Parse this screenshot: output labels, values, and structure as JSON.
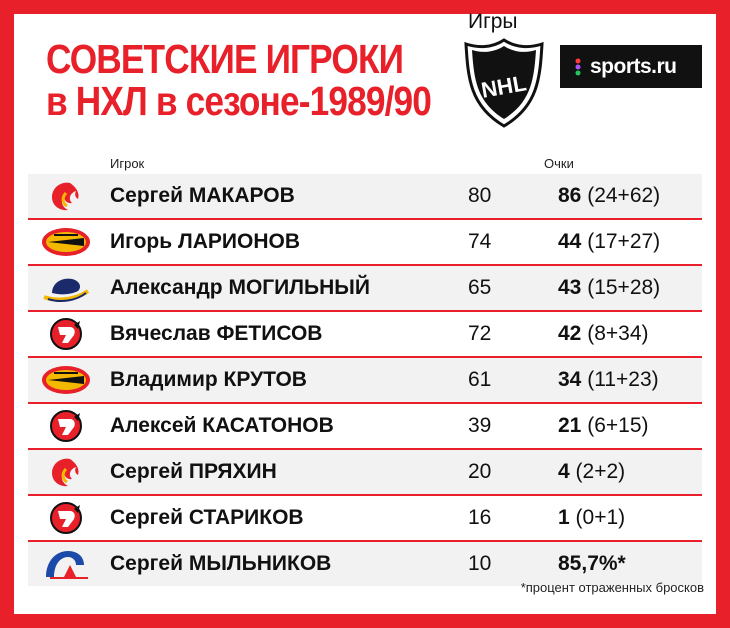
{
  "title": {
    "line1": "СОВЕТСКИЕ ИГРОКИ",
    "line2": "в НХЛ в сезоне-1989/90"
  },
  "brand": {
    "label": "sports.ru"
  },
  "nhl_logo": {
    "text": "NHL"
  },
  "headers": {
    "player": "Игрок",
    "games": "Игры",
    "points": "Очки"
  },
  "players": [
    {
      "first": "Сергей",
      "last": "МАКАРОВ",
      "team_icon": "calgary-flames-icon",
      "games": "80",
      "points": "86",
      "detail": "(24+62)"
    },
    {
      "first": "Игорь",
      "last": "ЛАРИОНОВ",
      "team_icon": "vancouver-canucks-icon",
      "games": "74",
      "points": "44",
      "detail": "(17+27)"
    },
    {
      "first": "Александр",
      "last": "МОГИЛЬНЫЙ",
      "team_icon": "buffalo-sabres-icon",
      "games": "65",
      "points": "43",
      "detail": "(15+28)"
    },
    {
      "first": "Вячеслав",
      "last": "ФЕТИСОВ",
      "team_icon": "new-jersey-devils-icon",
      "games": "72",
      "points": "42",
      "detail": "(8+34)"
    },
    {
      "first": "Владимир",
      "last": "КРУТОВ",
      "team_icon": "vancouver-canucks-icon",
      "games": "61",
      "points": "34",
      "detail": "(11+23)"
    },
    {
      "first": "Алексей",
      "last": "КАСАТОНОВ",
      "team_icon": "new-jersey-devils-icon",
      "games": "39",
      "points": "21",
      "detail": "(6+15)"
    },
    {
      "first": "Сергей",
      "last": "ПРЯХИН",
      "team_icon": "calgary-flames-icon",
      "games": "20",
      "points": "4",
      "detail": "(2+2)"
    },
    {
      "first": "Сергей",
      "last": "СТАРИКОВ",
      "team_icon": "new-jersey-devils-icon",
      "games": "16",
      "points": "1",
      "detail": "(0+1)"
    },
    {
      "first": "Сергей",
      "last": "МЫЛЬНИКОВ",
      "team_icon": "quebec-nordiques-icon",
      "games": "10",
      "points": "85,7%*",
      "detail": ""
    }
  ],
  "footnote": "*процент отраженных бросков",
  "colors": {
    "accent": "#e8202a",
    "row_alt": "#f2f2f2",
    "text": "#111111"
  }
}
